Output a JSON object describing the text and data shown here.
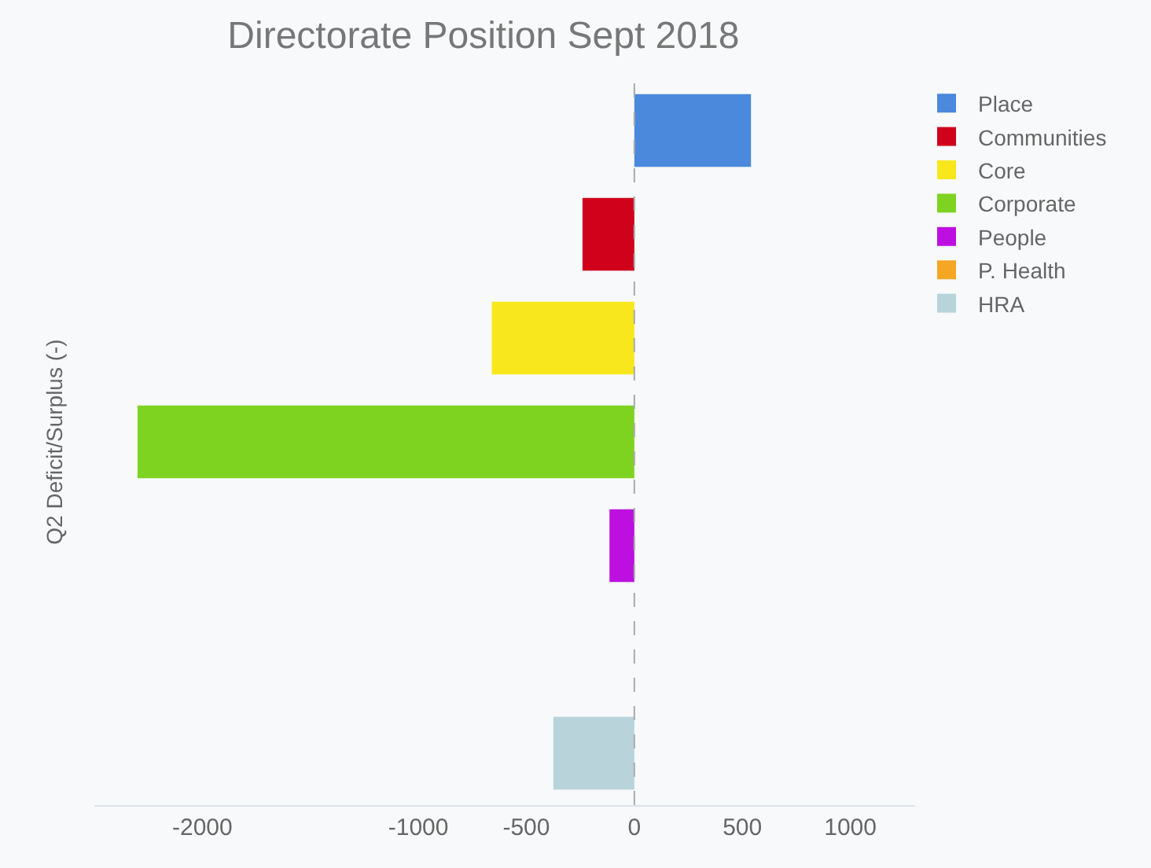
{
  "chart_data": {
    "type": "bar",
    "orientation": "horizontal",
    "title": "Directorate Position Sept 2018",
    "ylabel": "Q2 Deficit/Surplus (-)",
    "categories": [
      null,
      null,
      null,
      null,
      null,
      null,
      null
    ],
    "series": [
      {
        "name": "Place",
        "color": "#4a89dc",
        "values": [
          540,
          null,
          null,
          null,
          null,
          null,
          null
        ]
      },
      {
        "name": "Communities",
        "color": "#d0021b",
        "values": [
          null,
          -240,
          null,
          null,
          null,
          null,
          null
        ]
      },
      {
        "name": "Core",
        "color": "#f8e71c",
        "values": [
          null,
          null,
          -660,
          null,
          null,
          null,
          null
        ]
      },
      {
        "name": "Corporate",
        "color": "#7ed321",
        "values": [
          null,
          null,
          null,
          -2300,
          null,
          null,
          null
        ]
      },
      {
        "name": "People",
        "color": "#bd10e0",
        "values": [
          null,
          null,
          null,
          null,
          -115,
          null,
          null
        ]
      },
      {
        "name": "P. Health",
        "color": "#f5a623",
        "values": [
          null,
          null,
          null,
          null,
          null,
          0,
          null
        ]
      },
      {
        "name": "HRA",
        "color": "#b8d4da",
        "values": [
          null,
          null,
          null,
          null,
          null,
          null,
          -375
        ]
      }
    ],
    "xlim": [
      -2500,
      1300
    ],
    "xticks": [
      -2000,
      -1000,
      -500,
      0,
      500,
      1000
    ],
    "ref_lines": [
      {
        "axis": "x",
        "value": 0,
        "color": "#aaaaaa",
        "line_style": "dashed"
      }
    ],
    "grid": false,
    "legend": "top right"
  }
}
